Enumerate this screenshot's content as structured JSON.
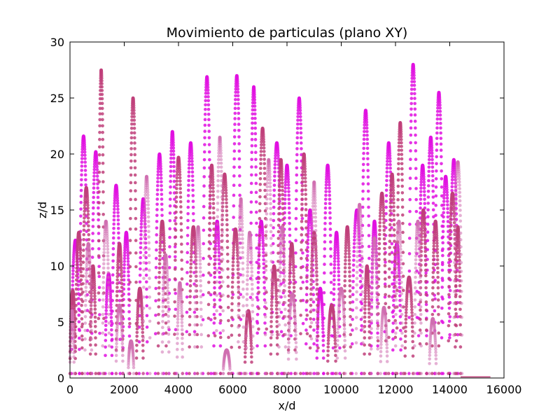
{
  "chart_data": {
    "type": "scatter",
    "title": "Movimiento de particulas (plano XY)",
    "xlabel": "x/d",
    "ylabel": "z/d",
    "xlim": [
      0,
      16000
    ],
    "ylim": [
      0,
      30
    ],
    "xticks": [
      "0",
      "2000",
      "4000",
      "6000",
      "8000",
      "10000",
      "12000",
      "14000",
      "16000"
    ],
    "yticks": [
      "0",
      "5",
      "10",
      "15",
      "20",
      "25",
      "30"
    ],
    "grid": false,
    "legend": "none",
    "colors": {
      "bright": "#e010e0",
      "muted": "#c0407a",
      "light": "#d070b0"
    },
    "series": [
      {
        "color_role": "bright",
        "hops": [
          [
            50,
            350,
            12.3
          ],
          [
            350,
            650,
            21.6
          ],
          [
            800,
            1100,
            20.2
          ],
          [
            1300,
            1550,
            9.3
          ],
          [
            1550,
            1850,
            17.2
          ],
          [
            1950,
            2200,
            13.0
          ],
          [
            2550,
            2850,
            16.0
          ],
          [
            3150,
            3450,
            20.0
          ],
          [
            3650,
            3900,
            22.0
          ],
          [
            4300,
            4600,
            21.0
          ],
          [
            4900,
            5200,
            26.9
          ],
          [
            5300,
            5550,
            14.0
          ],
          [
            6000,
            6300,
            27.0
          ],
          [
            6650,
            6900,
            26.0
          ],
          [
            6900,
            7200,
            14.0
          ],
          [
            7450,
            7800,
            21.0
          ],
          [
            7850,
            8150,
            19.0
          ],
          [
            8300,
            8600,
            25.0
          ],
          [
            8700,
            9000,
            15.0
          ],
          [
            9100,
            9350,
            8.0
          ],
          [
            9350,
            9650,
            19.0
          ],
          [
            9700,
            9950,
            13.0
          ],
          [
            10400,
            10750,
            15.0
          ],
          [
            10750,
            11050,
            23.9
          ],
          [
            11100,
            11350,
            14.0
          ],
          [
            11600,
            11900,
            21.0
          ],
          [
            11900,
            12200,
            12.0
          ],
          [
            12500,
            12800,
            28.0
          ],
          [
            12850,
            13150,
            19.0
          ],
          [
            13150,
            13450,
            21.5
          ],
          [
            13450,
            13750,
            25.5
          ],
          [
            13700,
            14000,
            18.0
          ],
          [
            14000,
            14300,
            19.5
          ]
        ]
      },
      {
        "color_role": "muted",
        "hops": [
          [
            0,
            200,
            7.8
          ],
          [
            200,
            450,
            13.0
          ],
          [
            450,
            750,
            17.0
          ],
          [
            750,
            950,
            10.0
          ],
          [
            1050,
            1250,
            27.5
          ],
          [
            1700,
            1950,
            12.0
          ],
          [
            2200,
            2450,
            25.0
          ],
          [
            2450,
            2700,
            8.0
          ],
          [
            3250,
            3550,
            14.0
          ],
          [
            3850,
            4150,
            19.7
          ],
          [
            4400,
            4700,
            13.5
          ],
          [
            5100,
            5350,
            19.0
          ],
          [
            5550,
            5850,
            18.2
          ],
          [
            5950,
            6250,
            13.3
          ],
          [
            6450,
            6700,
            6.0
          ],
          [
            6950,
            7250,
            22.3
          ],
          [
            7400,
            7650,
            10.0
          ],
          [
            7650,
            7900,
            19.5
          ],
          [
            8050,
            8300,
            12.0
          ],
          [
            8500,
            8750,
            20.0
          ],
          [
            8850,
            9150,
            13.0
          ],
          [
            9500,
            9800,
            6.5
          ],
          [
            10100,
            10350,
            13.5
          ],
          [
            10850,
            11050,
            10.0
          ],
          [
            11350,
            11650,
            16.5
          ],
          [
            11750,
            12000,
            18.2
          ],
          [
            12050,
            12300,
            22.8
          ],
          [
            12350,
            12650,
            9.0
          ],
          [
            12900,
            13150,
            15.0
          ],
          [
            13350,
            13600,
            14.0
          ],
          [
            13950,
            14250,
            16.5
          ],
          [
            14200,
            14400,
            13.5
          ]
        ]
      },
      {
        "color_role": "light",
        "hops": [
          [
            0,
            150,
            6.0
          ],
          [
            550,
            800,
            12.0
          ],
          [
            1200,
            1450,
            14.0
          ],
          [
            1700,
            1950,
            6.5
          ],
          [
            2150,
            2350,
            3.3
          ],
          [
            2700,
            2950,
            18.0
          ],
          [
            3400,
            3650,
            11.0
          ],
          [
            3950,
            4150,
            8.5
          ],
          [
            4600,
            4850,
            13.5
          ],
          [
            5400,
            5650,
            21.5
          ],
          [
            5650,
            5900,
            2.5
          ],
          [
            6200,
            6400,
            16.0
          ],
          [
            6500,
            6750,
            13.0
          ],
          [
            7200,
            7450,
            19.5
          ],
          [
            7700,
            7950,
            13.5
          ],
          [
            8050,
            8350,
            7.5
          ],
          [
            8900,
            9100,
            17.5
          ],
          [
            9850,
            10150,
            8.0
          ],
          [
            10550,
            10800,
            15.5
          ],
          [
            11100,
            11350,
            12.5
          ],
          [
            11450,
            11700,
            6.3
          ],
          [
            12000,
            12250,
            14.0
          ],
          [
            12700,
            12950,
            14.0
          ],
          [
            13250,
            13500,
            5.3
          ],
          [
            14150,
            14450,
            19.3
          ]
        ]
      }
    ]
  }
}
